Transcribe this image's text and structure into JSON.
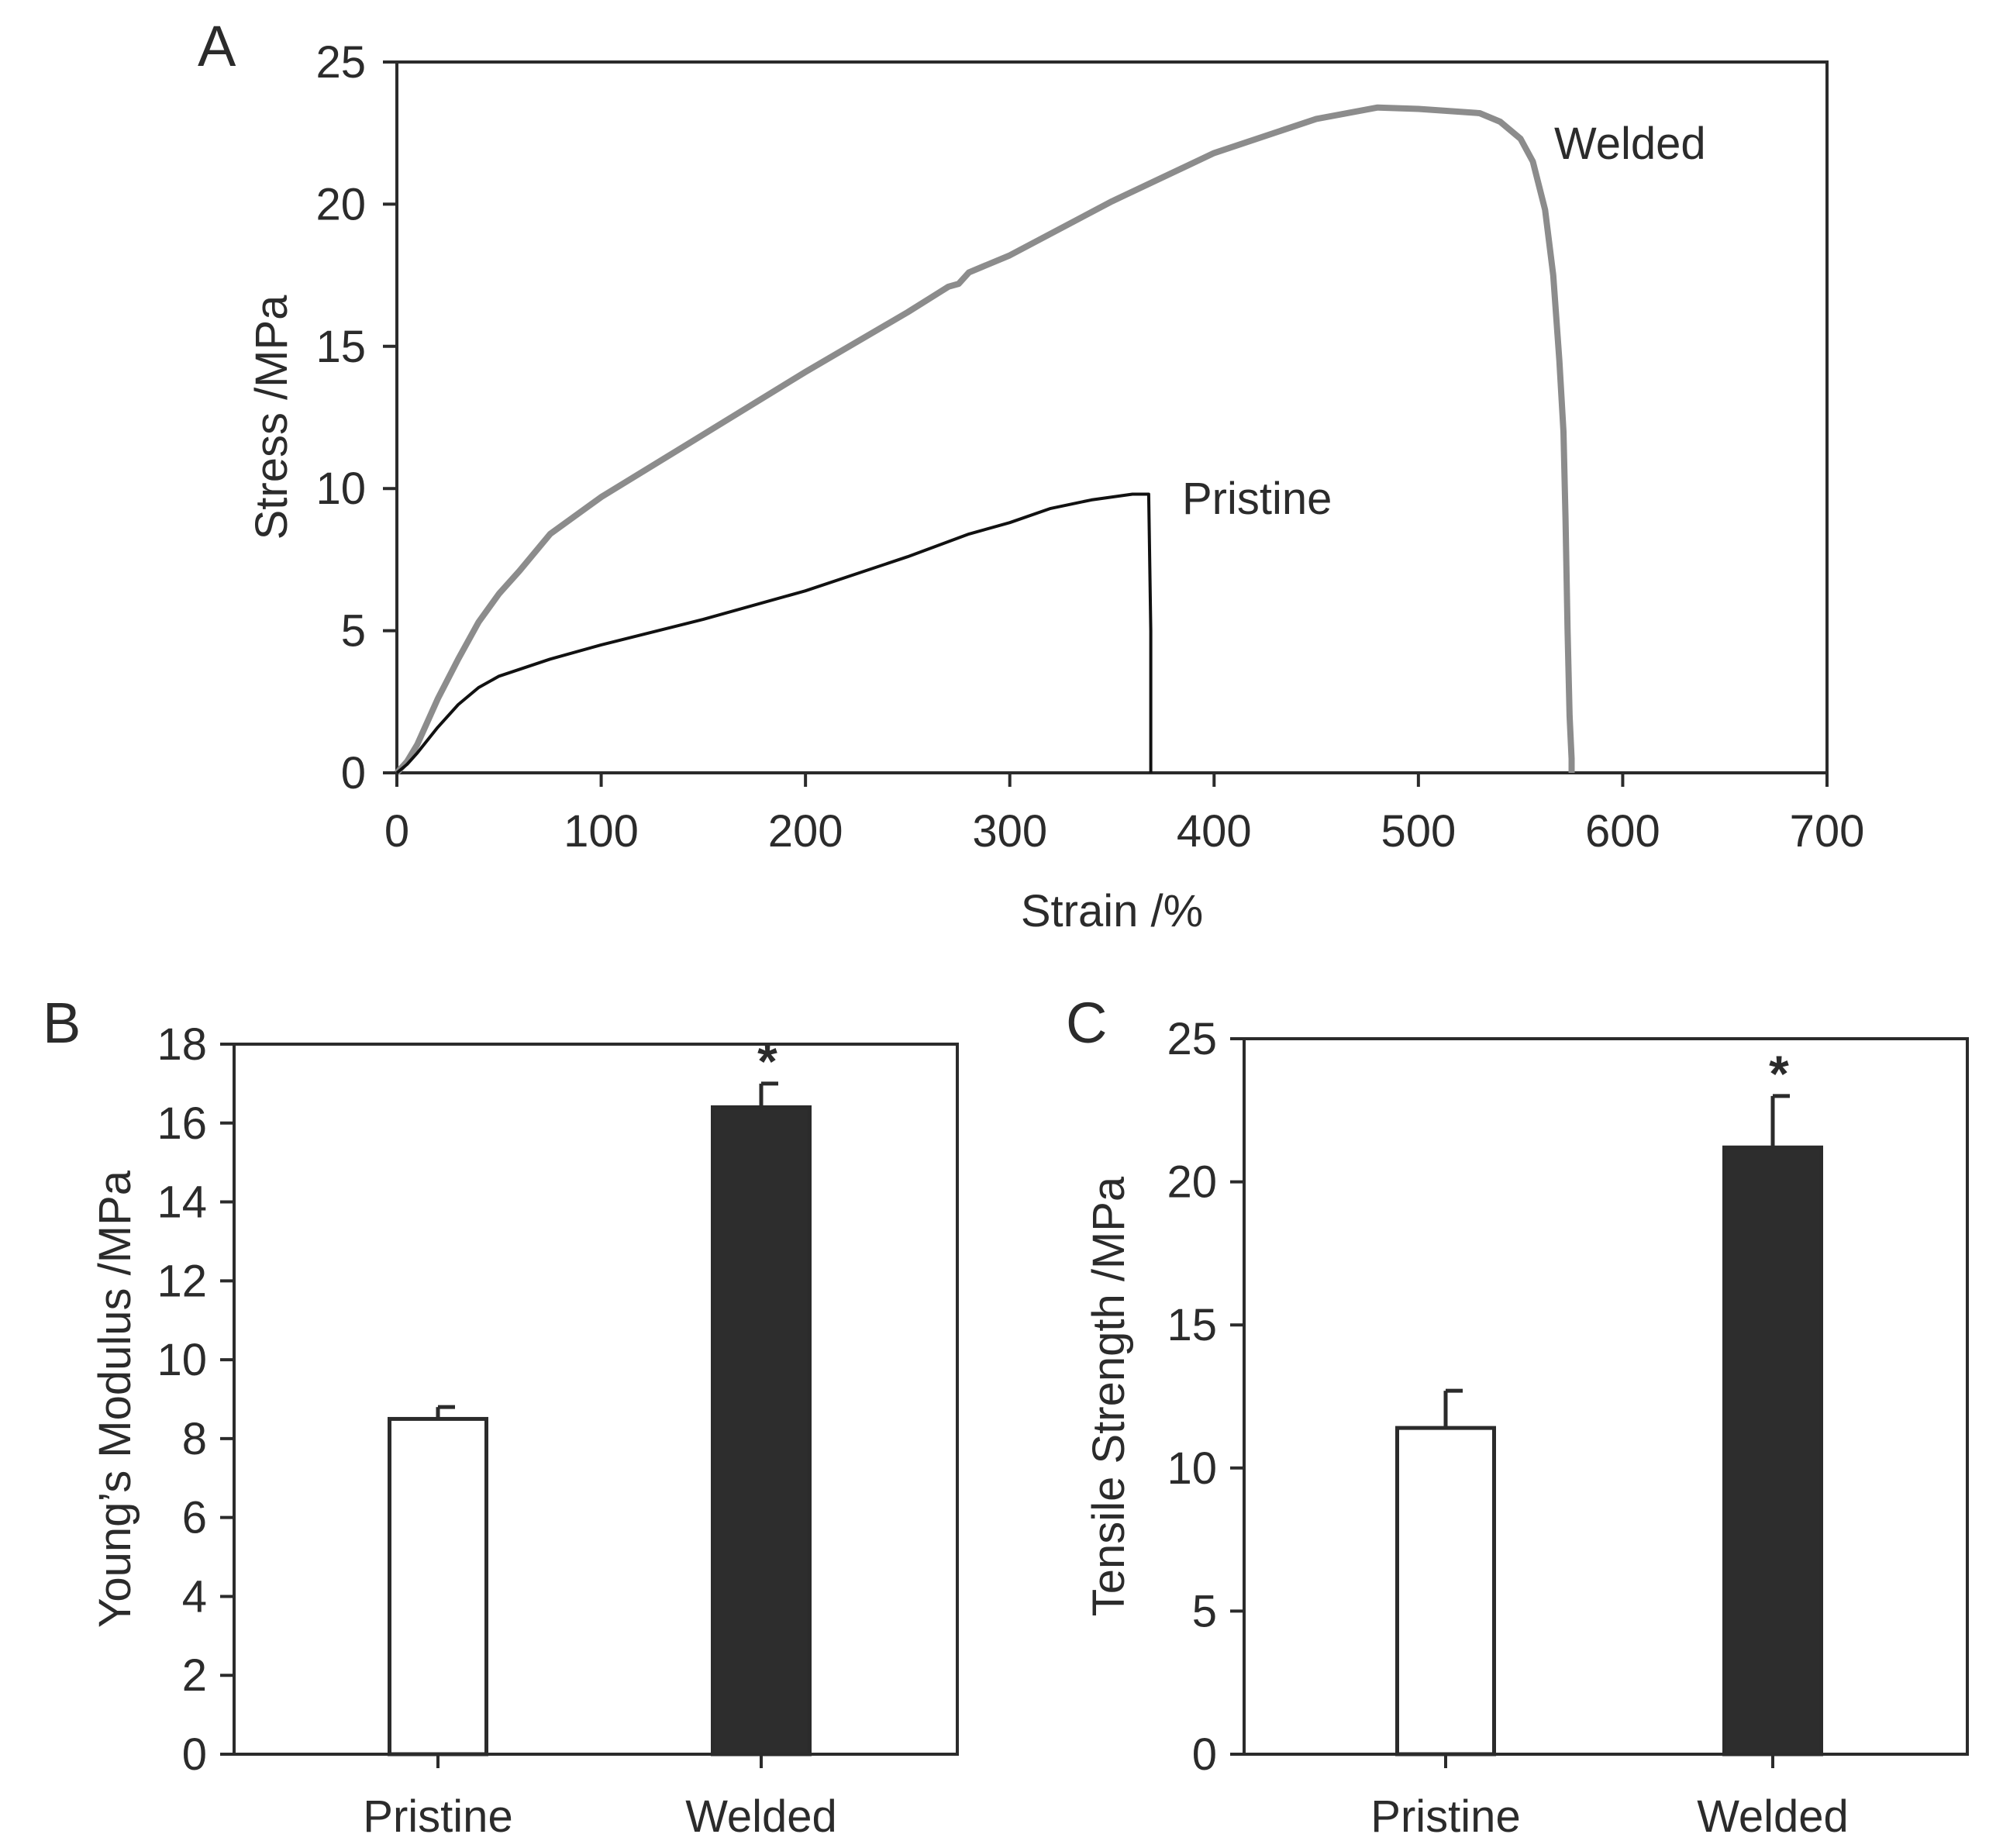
{
  "chart_data": [
    {
      "panel": "A",
      "type": "line",
      "xlabel": "Strain /%",
      "ylabel": "Stress /MPa",
      "xlim": [
        0,
        700
      ],
      "ylim": [
        0,
        25
      ],
      "xticks": [
        0,
        100,
        200,
        300,
        400,
        500,
        600,
        700
      ],
      "yticks": [
        0,
        5,
        10,
        15,
        20,
        25
      ],
      "series": [
        {
          "name": "Welded",
          "color": "#8c8c8c",
          "x": [
            0,
            5,
            10,
            20,
            30,
            40,
            50,
            60,
            75,
            100,
            150,
            200,
            250,
            270,
            275,
            280,
            300,
            350,
            400,
            450,
            480,
            500,
            530,
            540,
            550,
            556,
            562,
            566,
            569,
            571,
            572,
            573,
            574,
            575,
            575
          ],
          "y": [
            0,
            0.4,
            1.0,
            2.6,
            4.0,
            5.3,
            6.3,
            7.1,
            8.4,
            9.7,
            11.9,
            14.1,
            16.2,
            17.1,
            17.2,
            17.6,
            18.2,
            20.1,
            21.8,
            23.0,
            23.4,
            23.35,
            23.2,
            22.9,
            22.3,
            21.5,
            19.8,
            17.5,
            14.5,
            12.0,
            9.0,
            5.0,
            2.0,
            0.5,
            0
          ]
        },
        {
          "name": "Pristine",
          "color": "#111111",
          "x": [
            0,
            5,
            10,
            20,
            30,
            40,
            50,
            75,
            100,
            150,
            200,
            250,
            280,
            300,
            320,
            340,
            360,
            368,
            369,
            369
          ],
          "y": [
            0,
            0.3,
            0.7,
            1.6,
            2.4,
            3.0,
            3.4,
            4.0,
            4.5,
            5.4,
            6.4,
            7.6,
            8.4,
            8.8,
            9.3,
            9.6,
            9.8,
            9.8,
            5.0,
            0
          ]
        }
      ]
    },
    {
      "panel": "B",
      "type": "bar",
      "ylabel": "Young’s Modulus /MPa",
      "ylim": [
        0,
        18
      ],
      "yticks": [
        0,
        2,
        4,
        6,
        8,
        10,
        12,
        14,
        16,
        18
      ],
      "categories": [
        "Pristine",
        "Welded"
      ],
      "values": [
        8.5,
        16.4
      ],
      "errors": [
        0.3,
        0.6
      ],
      "fills": [
        "#ffffff",
        "#2d2d2d"
      ],
      "annotations": [
        "",
        "*"
      ]
    },
    {
      "panel": "C",
      "type": "bar",
      "ylabel": "Tensile Strength /MPa",
      "ylim": [
        0,
        25
      ],
      "yticks": [
        0,
        5,
        10,
        15,
        20,
        25
      ],
      "categories": [
        "Pristine",
        "Welded"
      ],
      "values": [
        11.4,
        21.2
      ],
      "errors": [
        1.3,
        1.8
      ],
      "fills": [
        "#ffffff",
        "#2d2d2d"
      ],
      "annotations": [
        "",
        "*"
      ]
    }
  ]
}
